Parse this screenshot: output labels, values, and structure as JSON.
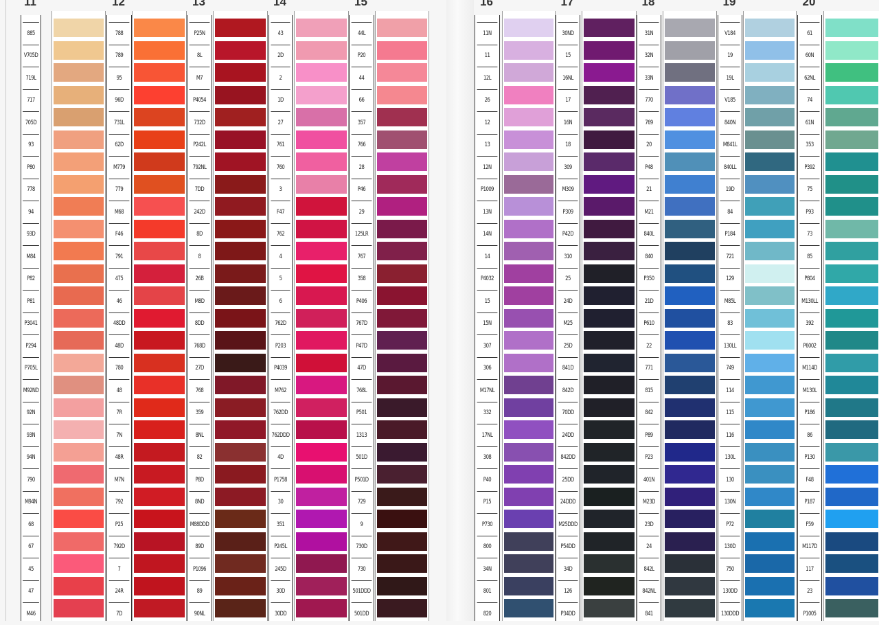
{
  "columns": [
    {
      "number": "11",
      "codes": [
        "885",
        "V705D",
        "719L",
        "717",
        "705D",
        "93",
        "P80",
        "778",
        "94",
        "93D",
        "M84",
        "P82",
        "P81",
        "P3041",
        "P294",
        "P705L",
        "M92ND",
        "92N",
        "93N",
        "94N",
        "790",
        "M94N",
        "68",
        "67",
        "45",
        "47",
        "M46"
      ],
      "colors": [
        "#f0d5a8",
        "#f0c890",
        "#e3a880",
        "#e7b07a",
        "#d9a070",
        "#f0a080",
        "#f3a078",
        "#f4a070",
        "#f07d55",
        "#f49070",
        "#f27a50",
        "#e9704e",
        "#e86a50",
        "#ec6a5a",
        "#e66a58",
        "#f3a898",
        "#e09080",
        "#f3a0a0",
        "#f4b0b0",
        "#f4a094",
        "#ef6a70",
        "#f07060",
        "#fa4c45",
        "#f06a68",
        "#fb5a7a",
        "#e8404a",
        "#e44050"
      ]
    },
    {
      "number": "12",
      "codes": [
        "788",
        "789",
        "95",
        "96D",
        "731L",
        "62D",
        "M779",
        "779",
        "M68",
        "F46",
        "791",
        "475",
        "46",
        "48DD",
        "48D",
        "780",
        "48",
        "7R",
        "7N",
        "48R",
        "M7N",
        "792",
        "P25",
        "792D",
        "7",
        "24R",
        "7D"
      ],
      "colors": [
        "#fa8848",
        "#fa7035",
        "#f85535",
        "#fd4030",
        "#dc4420",
        "#e84018",
        "#d03a1c",
        "#e05020",
        "#f65050",
        "#f43a2a",
        "#e84848",
        "#d4203c",
        "#e44448",
        "#e01a30",
        "#c81820",
        "#d83020",
        "#e83028",
        "#e02a1a",
        "#d8201c",
        "#c41a20",
        "#c81a22",
        "#d01c24",
        "#c8141c",
        "#b81424",
        "#c01620",
        "#c0141e",
        "#c01a24"
      ]
    },
    {
      "number": "13",
      "codes": [
        "P25N",
        "8L",
        "M7",
        "P4054",
        "732D",
        "P242L",
        "792NL",
        "7DD",
        "242D",
        "8D",
        "8",
        "26B",
        "M8D",
        "8DD",
        "768D",
        "27D",
        "768",
        "359",
        "8NL",
        "82",
        "P8D",
        "8ND",
        "M88DDD",
        "89D",
        "P1096",
        "89",
        "90NL"
      ],
      "colors": [
        "#b01820",
        "#b8162a",
        "#a81420",
        "#981420",
        "#a02020",
        "#981226",
        "#a01424",
        "#8a1a1a",
        "#901a20",
        "#8a1818",
        "#7e1818",
        "#7a1a1a",
        "#6a1a1a",
        "#7a1418",
        "#5a1418",
        "#3a1a18",
        "#801828",
        "#8a1c24",
        "#901828",
        "#8a3030",
        "#8a1a20",
        "#8c1a24",
        "#6a2a18",
        "#5a2018",
        "#702a20",
        "#6a2218",
        "#5a2418"
      ]
    },
    {
      "number": "14",
      "codes": [
        "43",
        "2D",
        "2",
        "1D",
        "27",
        "761",
        "760",
        "3",
        "F47",
        "762",
        "4",
        "5",
        "6",
        "762D",
        "P203",
        "P4039",
        "M762",
        "762DD",
        "762DDD",
        "4D",
        "P1758",
        "30",
        "351",
        "P245L",
        "245D",
        "30D",
        "30DD"
      ],
      "colors": [
        "#f0a0b8",
        "#f09ab0",
        "#f890c8",
        "#f4a0cc",
        "#d870a8",
        "#f050a0",
        "#f060a0",
        "#e880a8",
        "#d0143c",
        "#d01444",
        "#e8206a",
        "#e01444",
        "#d81850",
        "#d0205a",
        "#e01860",
        "#d01038",
        "#d81880",
        "#d02060",
        "#b8104a",
        "#e81070",
        "#d81070",
        "#c020a0",
        "#b018b0",
        "#b010a0",
        "#901850",
        "#a0205a",
        "#a01850"
      ]
    },
    {
      "number": "15",
      "codes": [
        "44L",
        "P20",
        "44",
        "66",
        "357",
        "766",
        "28",
        "P46",
        "29",
        "125LR",
        "767",
        "358",
        "P406",
        "767D",
        "P47D",
        "47D",
        "768L",
        "P501",
        "1313",
        "501D",
        "P501D",
        "729",
        "9",
        "730D",
        "730",
        "501DDD",
        "501DD"
      ],
      "colors": [
        "#f0a0a8",
        "#f57a90",
        "#f58898",
        "#f58890",
        "#a03050",
        "#a05070",
        "#c040a0",
        "#a02a5a",
        "#b02080",
        "#7a1a4a",
        "#80204a",
        "#8a2030",
        "#8a1430",
        "#801838",
        "#602050",
        "#5a1a40",
        "#5a1830",
        "#3a1a2a",
        "#4a1a28",
        "#3a1a30",
        "#4a2030",
        "#3a1a1a",
        "#3a1010",
        "#401818",
        "#3a1818",
        "#301818",
        "#3a1a20"
      ]
    },
    {
      "number": "16",
      "codes": [
        "11N",
        "11",
        "12L",
        "26",
        "12",
        "13",
        "12N",
        "P1009",
        "13N",
        "14N",
        "14",
        "P4032",
        "15",
        "15N",
        "307",
        "306",
        "M17NL",
        "332",
        "17NL",
        "308",
        "P40",
        "P15",
        "P730",
        "800",
        "34N",
        "801",
        "820"
      ],
      "colors": [
        "#e0d0f0",
        "#d8b0e0",
        "#d0a8d8",
        "#f080c0",
        "#e0a0d8",
        "#c890d8",
        "#c8a0d8",
        "#9a6a98",
        "#b890d8",
        "#b070c8",
        "#a060b0",
        "#a040a0",
        "#a040a0",
        "#9850b0",
        "#b070c8",
        "#b070c8",
        "#704090",
        "#7040a0",
        "#9050c0",
        "#8850b0",
        "#8040b0",
        "#8040b0",
        "#6a40b0",
        "#40405a",
        "#40405a",
        "#3a4060",
        "#305070"
      ]
    },
    {
      "number": "17",
      "codes": [
        "30ND",
        "15",
        "16NL",
        "17",
        "16N",
        "18",
        "309",
        "M309",
        "P309",
        "P42D",
        "310",
        "25",
        "24D",
        "M25",
        "25D",
        "841D",
        "842D",
        "70DD",
        "24DD",
        "842DD",
        "25DD",
        "24DDD",
        "M25DDD",
        "P54DD",
        "34D",
        "126",
        "P34DD"
      ],
      "colors": [
        "#602060",
        "#701a70",
        "#8a1a90",
        "#502050",
        "#5a2a60",
        "#401a40",
        "#5a2a6a",
        "#601a80",
        "#5a1a6a",
        "#401a40",
        "#3a2040",
        "#202028",
        "#202030",
        "#202030",
        "#20202a",
        "#202430",
        "#202028",
        "#202028",
        "#202428",
        "#202428",
        "#20242a",
        "#1a2020",
        "#20242a",
        "#202428",
        "#2a3030",
        "#202420",
        "#3a4040"
      ]
    },
    {
      "number": "18",
      "codes": [
        "31N",
        "32N",
        "33N",
        "770",
        "769",
        "20",
        "P48",
        "21",
        "M21",
        "840L",
        "840",
        "P350",
        "21D",
        "P610",
        "22",
        "771",
        "815",
        "842",
        "P89",
        "P23",
        "401N",
        "M23D",
        "23D",
        "24",
        "842L",
        "842NL",
        "841"
      ],
      "colors": [
        "#a8a8b0",
        "#a0a0a8",
        "#707080",
        "#7070c8",
        "#6080e0",
        "#5090e0",
        "#5090b8",
        "#4080d0",
        "#4070c0",
        "#306080",
        "#204060",
        "#205080",
        "#2060c0",
        "#2050a0",
        "#2050b0",
        "#2a5898",
        "#204070",
        "#203070",
        "#202a60",
        "#20288a",
        "#302890",
        "#30207a",
        "#282060",
        "#2a2050",
        "#2a3038",
        "#303840",
        "#303a40"
      ]
    },
    {
      "number": "19",
      "codes": [
        "V184",
        "19",
        "19L",
        "V185",
        "840N",
        "M841L",
        "840LL",
        "19D",
        "84",
        "P184",
        "721",
        "129",
        "M85L",
        "83",
        "130LL",
        "749",
        "114",
        "115",
        "116",
        "130L",
        "130",
        "130N",
        "P72",
        "130D",
        "750",
        "130DD",
        "130DDD"
      ],
      "colors": [
        "#b0d0e0",
        "#90c0e8",
        "#a8d0e0",
        "#80b0c0",
        "#70a0a8",
        "#6a9090",
        "#306880",
        "#5090c0",
        "#40a0b8",
        "#40a0c0",
        "#70b8c8",
        "#d0f0f0",
        "#80c0c8",
        "#70c0d8",
        "#a0e0f0",
        "#60b0e8",
        "#4098d0",
        "#4098d0",
        "#3088c8",
        "#3a90c0",
        "#3a90c0",
        "#3088c8",
        "#2080a0",
        "#1a70b0",
        "#1a68a8",
        "#1a70b0",
        "#1a78b0"
      ]
    },
    {
      "number": "20",
      "codes": [
        "61",
        "60N",
        "62NL",
        "74",
        "61N",
        "353",
        "P392",
        "75",
        "P93",
        "73",
        "85",
        "P804",
        "M130LL",
        "392",
        "P6002",
        "M114D",
        "M130L",
        "P186",
        "86",
        "P130",
        "F48",
        "P187",
        "F59",
        "M117D",
        "117",
        "23",
        "P1005"
      ],
      "colors": [
        "#80e0c8",
        "#90e8c8",
        "#40c080",
        "#50c8b0",
        "#60a890",
        "#70a890",
        "#209090",
        "#209088",
        "#20908a",
        "#70b8a8",
        "#30a0a0",
        "#30a8a8",
        "#30a8c8",
        "#209898",
        "#208888",
        "#309ca8",
        "#208898",
        "#207888",
        "#206a80",
        "#3a98a8",
        "#2070d8",
        "#2068c8",
        "#20a0f0",
        "#1a4a80",
        "#1a5080",
        "#2050a0",
        "#3a6060"
      ]
    }
  ]
}
